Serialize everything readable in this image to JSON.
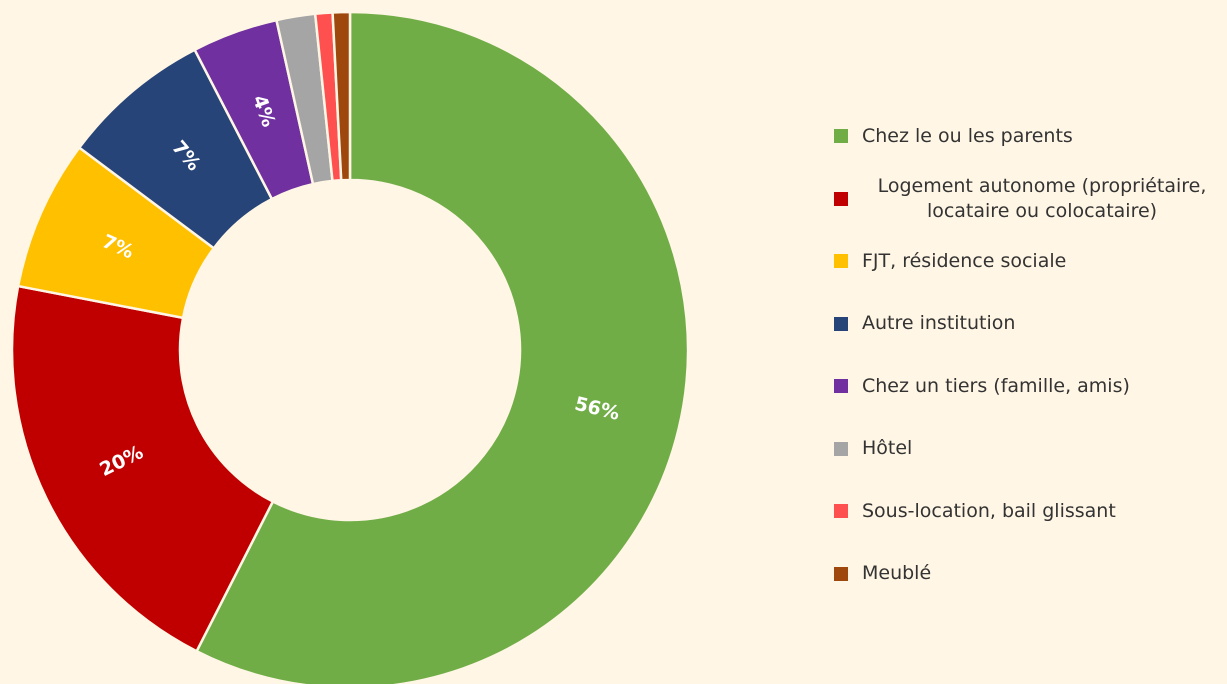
{
  "chart_data": {
    "type": "donut",
    "categories": [
      "Chez le ou les parents",
      "Logement autonome (propriétaire, locataire ou colocataire)",
      "FJT, résidence sociale",
      "Autre institution",
      "Chez un tiers (famille, amis)",
      "Hôtel",
      "Sous-location, bail glissant",
      "Meublé"
    ],
    "values": [
      56,
      20,
      7,
      7,
      4,
      1.8,
      0.8,
      0.8
    ],
    "value_labels": [
      "56%",
      "20%",
      "7%",
      "7%",
      "4%",
      null,
      null,
      null
    ],
    "colors": [
      "#70ad47",
      "#c00000",
      "#ffc000",
      "#264478",
      "#7030a0",
      "#a5a5a5",
      "#ff5050",
      "#9e480e"
    ],
    "legend": "right"
  }
}
